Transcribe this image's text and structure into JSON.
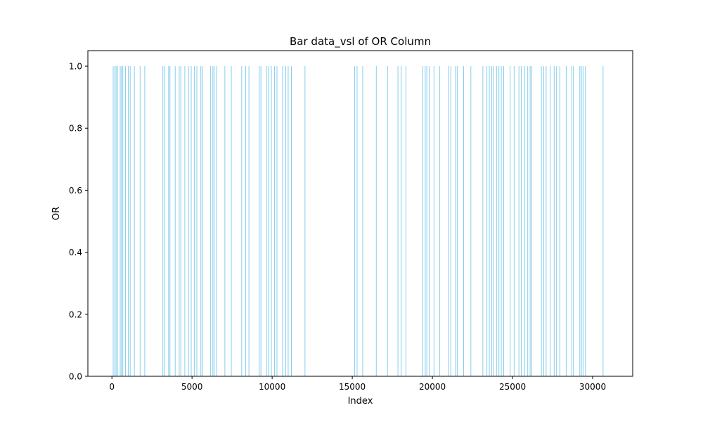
{
  "chart_data": {
    "type": "bar",
    "title": "Bar data_vsl of OR Column",
    "xlabel": "Index",
    "ylabel": "OR",
    "xlim": [
      -1500,
      32500
    ],
    "ylim": [
      0,
      1.05
    ],
    "xticks": [
      0,
      5000,
      10000,
      15000,
      20000,
      25000,
      30000
    ],
    "xtick_labels": [
      "0",
      "5000",
      "10000",
      "15000",
      "20000",
      "25000",
      "30000"
    ],
    "yticks": [
      0,
      0.2,
      0.4,
      0.6,
      0.8,
      1.0
    ],
    "ytick_labels": [
      "0.0",
      "0.2",
      "0.4",
      "0.6",
      "0.8",
      "1.0"
    ],
    "bar_color": "#87ceeb",
    "grid": false,
    "legend": "none",
    "series": [
      {
        "values": [
          {
            "x": 80,
            "y": 1
          },
          {
            "x": 180,
            "y": 1
          },
          {
            "x": 260,
            "y": 1
          },
          {
            "x": 350,
            "y": 1
          },
          {
            "x": 520,
            "y": 1
          },
          {
            "x": 600,
            "y": 1
          },
          {
            "x": 680,
            "y": 1
          },
          {
            "x": 850,
            "y": 1
          },
          {
            "x": 1020,
            "y": 1
          },
          {
            "x": 1140,
            "y": 1
          },
          {
            "x": 1400,
            "y": 1
          },
          {
            "x": 1760,
            "y": 1
          },
          {
            "x": 2050,
            "y": 1
          },
          {
            "x": 3180,
            "y": 1
          },
          {
            "x": 3300,
            "y": 1
          },
          {
            "x": 3540,
            "y": 1
          },
          {
            "x": 3620,
            "y": 1
          },
          {
            "x": 3950,
            "y": 1
          },
          {
            "x": 4200,
            "y": 1
          },
          {
            "x": 4300,
            "y": 1
          },
          {
            "x": 4550,
            "y": 1
          },
          {
            "x": 4780,
            "y": 1
          },
          {
            "x": 4950,
            "y": 1
          },
          {
            "x": 5150,
            "y": 1
          },
          {
            "x": 5300,
            "y": 1
          },
          {
            "x": 5550,
            "y": 1
          },
          {
            "x": 5650,
            "y": 1
          },
          {
            "x": 6150,
            "y": 1
          },
          {
            "x": 6300,
            "y": 1
          },
          {
            "x": 6380,
            "y": 1
          },
          {
            "x": 6550,
            "y": 1
          },
          {
            "x": 7050,
            "y": 1
          },
          {
            "x": 7450,
            "y": 1
          },
          {
            "x": 8100,
            "y": 1
          },
          {
            "x": 8350,
            "y": 1
          },
          {
            "x": 8550,
            "y": 1
          },
          {
            "x": 9200,
            "y": 1
          },
          {
            "x": 9300,
            "y": 1
          },
          {
            "x": 9650,
            "y": 1
          },
          {
            "x": 9780,
            "y": 1
          },
          {
            "x": 9950,
            "y": 1
          },
          {
            "x": 10150,
            "y": 1
          },
          {
            "x": 10300,
            "y": 1
          },
          {
            "x": 10650,
            "y": 1
          },
          {
            "x": 10850,
            "y": 1
          },
          {
            "x": 11000,
            "y": 1
          },
          {
            "x": 11200,
            "y": 1
          },
          {
            "x": 12050,
            "y": 1
          },
          {
            "x": 15150,
            "y": 1
          },
          {
            "x": 15300,
            "y": 1
          },
          {
            "x": 15650,
            "y": 1
          },
          {
            "x": 16500,
            "y": 1
          },
          {
            "x": 17200,
            "y": 1
          },
          {
            "x": 17850,
            "y": 1
          },
          {
            "x": 18050,
            "y": 1
          },
          {
            "x": 18350,
            "y": 1
          },
          {
            "x": 19400,
            "y": 1
          },
          {
            "x": 19550,
            "y": 1
          },
          {
            "x": 19650,
            "y": 1
          },
          {
            "x": 19800,
            "y": 1
          },
          {
            "x": 20100,
            "y": 1
          },
          {
            "x": 20450,
            "y": 1
          },
          {
            "x": 21000,
            "y": 1
          },
          {
            "x": 21150,
            "y": 1
          },
          {
            "x": 21450,
            "y": 1
          },
          {
            "x": 21550,
            "y": 1
          },
          {
            "x": 21950,
            "y": 1
          },
          {
            "x": 22400,
            "y": 1
          },
          {
            "x": 23150,
            "y": 1
          },
          {
            "x": 23400,
            "y": 1
          },
          {
            "x": 23550,
            "y": 1
          },
          {
            "x": 23700,
            "y": 1
          },
          {
            "x": 23800,
            "y": 1
          },
          {
            "x": 24000,
            "y": 1
          },
          {
            "x": 24150,
            "y": 1
          },
          {
            "x": 24300,
            "y": 1
          },
          {
            "x": 24450,
            "y": 1
          },
          {
            "x": 24850,
            "y": 1
          },
          {
            "x": 25100,
            "y": 1
          },
          {
            "x": 25400,
            "y": 1
          },
          {
            "x": 25550,
            "y": 1
          },
          {
            "x": 25750,
            "y": 1
          },
          {
            "x": 25950,
            "y": 1
          },
          {
            "x": 26100,
            "y": 1
          },
          {
            "x": 26200,
            "y": 1
          },
          {
            "x": 26800,
            "y": 1
          },
          {
            "x": 26950,
            "y": 1
          },
          {
            "x": 27100,
            "y": 1
          },
          {
            "x": 27350,
            "y": 1
          },
          {
            "x": 27600,
            "y": 1
          },
          {
            "x": 27750,
            "y": 1
          },
          {
            "x": 27950,
            "y": 1
          },
          {
            "x": 28350,
            "y": 1
          },
          {
            "x": 28700,
            "y": 1
          },
          {
            "x": 28800,
            "y": 1
          },
          {
            "x": 29200,
            "y": 1
          },
          {
            "x": 29300,
            "y": 1
          },
          {
            "x": 29400,
            "y": 1
          },
          {
            "x": 29550,
            "y": 1
          },
          {
            "x": 30650,
            "y": 1
          }
        ]
      }
    ]
  }
}
